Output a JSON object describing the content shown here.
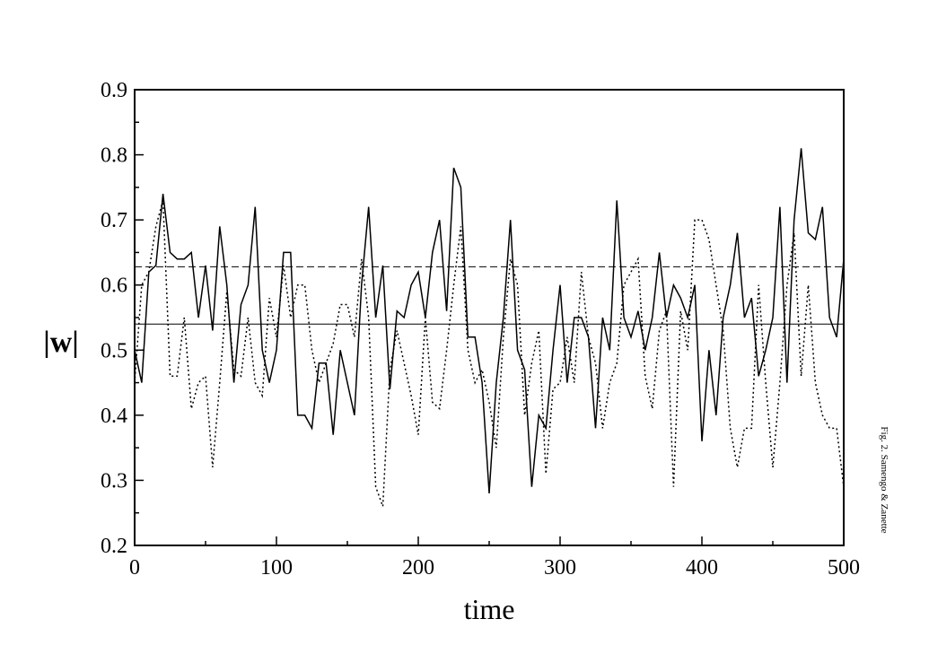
{
  "chart_data": {
    "type": "line",
    "xlabel": "time",
    "ylabel": "|w|",
    "caption": "Fig. 2. Samengo & Zanette",
    "xlim": [
      0,
      500
    ],
    "ylim": [
      0.2,
      0.9
    ],
    "xticks": [
      0,
      100,
      200,
      300,
      400,
      500
    ],
    "yticks": [
      0.2,
      0.3,
      0.4,
      0.5,
      0.6,
      0.7,
      0.8,
      0.9
    ],
    "xminorticks": [
      50,
      150,
      250,
      350,
      450
    ],
    "yminorticks": [
      0.25,
      0.35,
      0.45,
      0.55,
      0.65,
      0.75,
      0.85
    ],
    "x": [
      0,
      5,
      10,
      15,
      20,
      25,
      30,
      35,
      40,
      45,
      50,
      55,
      60,
      65,
      70,
      75,
      80,
      85,
      90,
      95,
      100,
      105,
      110,
      115,
      120,
      125,
      130,
      135,
      140,
      145,
      150,
      155,
      160,
      165,
      170,
      175,
      180,
      185,
      190,
      195,
      200,
      205,
      210,
      215,
      220,
      225,
      230,
      235,
      240,
      245,
      250,
      255,
      260,
      265,
      270,
      275,
      280,
      285,
      290,
      295,
      300,
      305,
      310,
      315,
      320,
      325,
      330,
      335,
      340,
      345,
      350,
      355,
      360,
      365,
      370,
      375,
      380,
      385,
      390,
      395,
      400,
      405,
      410,
      415,
      420,
      425,
      430,
      435,
      440,
      445,
      450,
      455,
      460,
      465,
      470,
      475,
      480,
      485,
      490,
      495,
      500
    ],
    "series": [
      {
        "color": "#000000",
        "dash": "solid",
        "values": [
          0.5,
          0.45,
          0.62,
          0.63,
          0.74,
          0.65,
          0.64,
          0.64,
          0.65,
          0.55,
          0.63,
          0.53,
          0.69,
          0.6,
          0.45,
          0.57,
          0.6,
          0.72,
          0.5,
          0.45,
          0.5,
          0.65,
          0.65,
          0.4,
          0.4,
          0.38,
          0.48,
          0.48,
          0.37,
          0.5,
          0.45,
          0.4,
          0.6,
          0.72,
          0.55,
          0.63,
          0.44,
          0.56,
          0.55,
          0.6,
          0.62,
          0.55,
          0.65,
          0.7,
          0.56,
          0.78,
          0.75,
          0.52,
          0.52,
          0.45,
          0.28,
          0.45,
          0.55,
          0.7,
          0.5,
          0.47,
          0.29,
          0.4,
          0.38,
          0.5,
          0.6,
          0.45,
          0.55,
          0.55,
          0.52,
          0.38,
          0.55,
          0.5,
          0.73,
          0.55,
          0.52,
          0.56,
          0.5,
          0.55,
          0.65,
          0.55,
          0.6,
          0.58,
          0.55,
          0.6,
          0.36,
          0.5,
          0.4,
          0.55,
          0.6,
          0.68,
          0.55,
          0.58,
          0.46,
          0.5,
          0.55,
          0.72,
          0.45,
          0.7,
          0.81,
          0.68,
          0.67,
          0.72,
          0.55,
          0.52,
          0.64
        ]
      },
      {
        "color": "#000000",
        "dash": "dotted",
        "values": [
          0.45,
          0.6,
          0.62,
          0.69,
          0.73,
          0.46,
          0.46,
          0.55,
          0.41,
          0.45,
          0.46,
          0.32,
          0.45,
          0.59,
          0.47,
          0.46,
          0.55,
          0.45,
          0.43,
          0.58,
          0.52,
          0.63,
          0.55,
          0.6,
          0.6,
          0.5,
          0.45,
          0.48,
          0.51,
          0.57,
          0.57,
          0.52,
          0.64,
          0.55,
          0.29,
          0.26,
          0.47,
          0.53,
          0.48,
          0.43,
          0.37,
          0.55,
          0.42,
          0.41,
          0.5,
          0.6,
          0.69,
          0.5,
          0.45,
          0.47,
          0.42,
          0.35,
          0.52,
          0.64,
          0.6,
          0.4,
          0.48,
          0.53,
          0.31,
          0.44,
          0.45,
          0.52,
          0.45,
          0.62,
          0.52,
          0.48,
          0.38,
          0.45,
          0.48,
          0.6,
          0.62,
          0.64,
          0.46,
          0.41,
          0.53,
          0.56,
          0.29,
          0.56,
          0.5,
          0.7,
          0.7,
          0.67,
          0.6,
          0.53,
          0.38,
          0.32,
          0.38,
          0.38,
          0.6,
          0.45,
          0.32,
          0.45,
          0.6,
          0.68,
          0.46,
          0.6,
          0.45,
          0.4,
          0.38,
          0.38,
          0.29
        ]
      }
    ],
    "hlines": [
      {
        "value": 0.54,
        "dash": "solid"
      },
      {
        "value": 0.628,
        "dash": "dashed"
      }
    ]
  }
}
